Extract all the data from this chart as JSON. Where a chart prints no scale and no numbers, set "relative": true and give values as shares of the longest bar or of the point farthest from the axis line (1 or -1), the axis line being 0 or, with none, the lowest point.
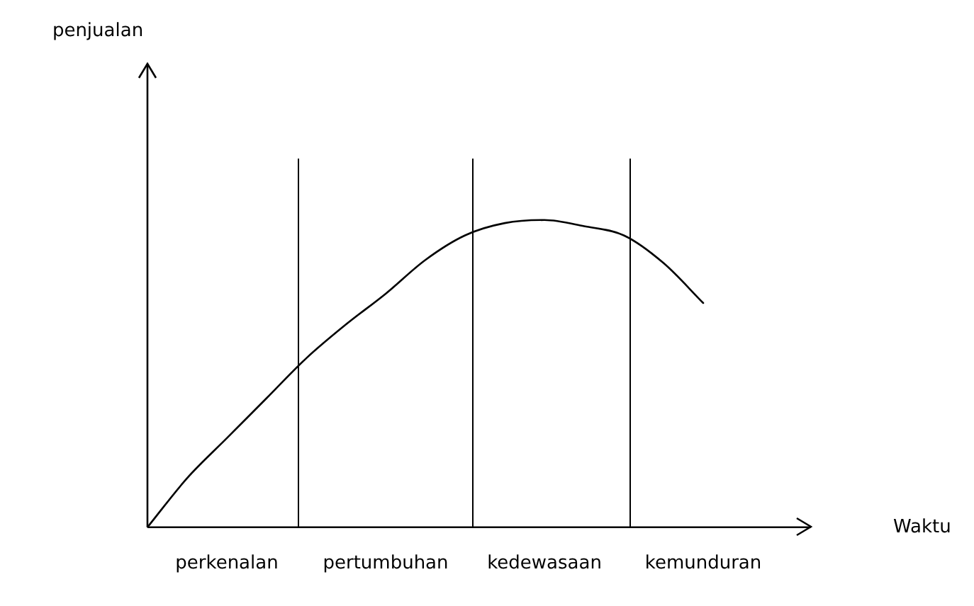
{
  "chart_data": {
    "type": "line",
    "relative": true,
    "xlabel": "Waktu",
    "annotations": [
      "penjualan"
    ],
    "categories": [
      null,
      null,
      "perkenalan",
      null,
      null,
      null,
      "pertumbuhan",
      null,
      null,
      null,
      "kedewasaan",
      null,
      null,
      null,
      "kemunduran",
      null,
      null
    ],
    "series": [
      {
        "color": "#000000",
        "values": [
          0,
          0.16,
          0.29,
          0.42,
          0.55,
          0.66,
          0.76,
          0.87,
          0.95,
          0.99,
          1,
          0.98,
          0.95,
          0.86,
          0.73,
          null,
          null
        ]
      }
    ]
  }
}
